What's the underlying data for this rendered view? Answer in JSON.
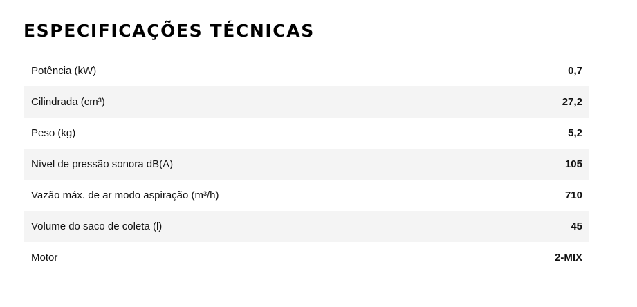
{
  "title": "ESPECIFICAÇÕES TÉCNICAS",
  "specs": [
    {
      "label": "Potência (kW)",
      "value": "0,7"
    },
    {
      "label": "Cilindrada (cm³)",
      "value": "27,2"
    },
    {
      "label": "Peso (kg)",
      "value": "5,2"
    },
    {
      "label": "Nível de pressão sonora dB(A)",
      "value": "105"
    },
    {
      "label": "Vazão máx. de ar modo aspiração (m³/h)",
      "value": "710"
    },
    {
      "label": "Volume do saco de coleta (l)",
      "value": "45"
    },
    {
      "label": "Motor",
      "value": "2-MIX"
    }
  ]
}
